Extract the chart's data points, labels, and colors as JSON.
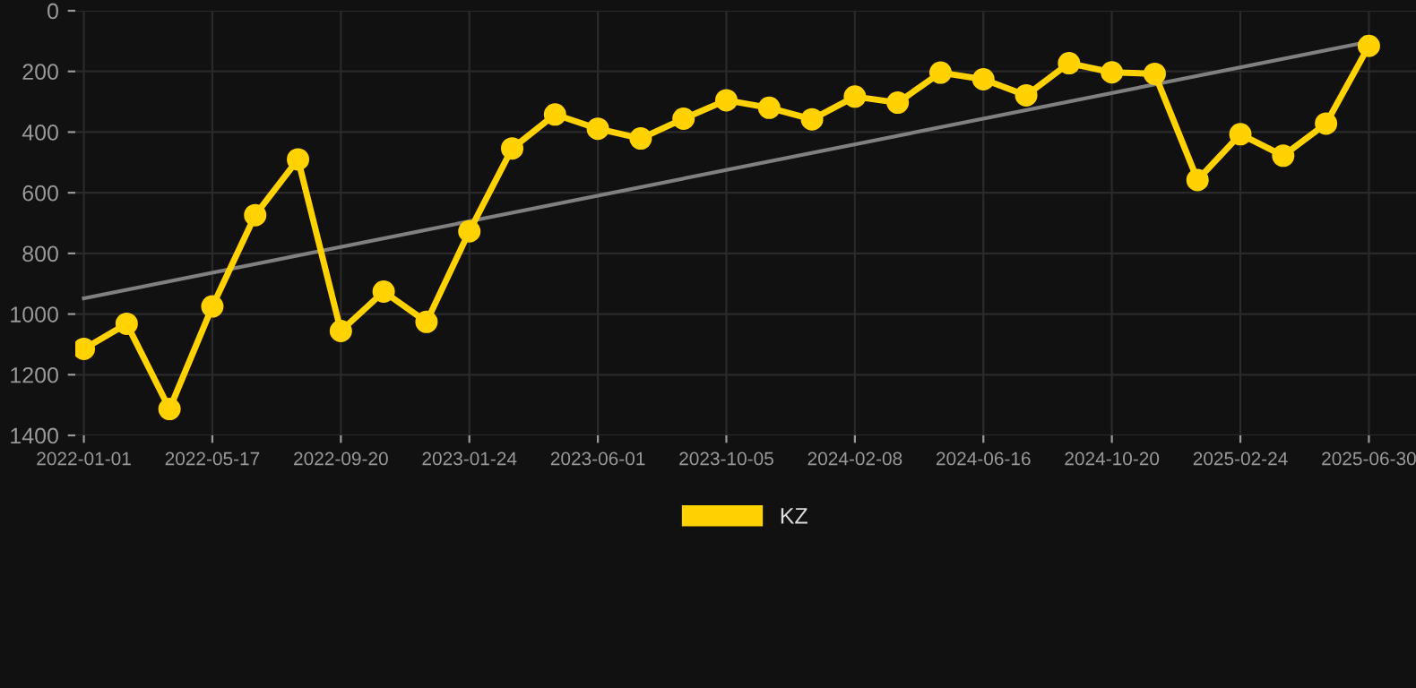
{
  "chart_data": {
    "type": "line",
    "categories": [
      "2022-01-01",
      null,
      null,
      "2022-05-17",
      null,
      null,
      "2022-09-20",
      null,
      null,
      "2023-01-24",
      null,
      null,
      "2023-06-01",
      null,
      null,
      "2023-10-05",
      null,
      null,
      "2024-02-08",
      null,
      null,
      "2024-06-16",
      null,
      null,
      "2024-10-20",
      null,
      null,
      "2025-02-24",
      null,
      null,
      "2025-06-30"
    ],
    "series": [
      {
        "name": "KZ",
        "color": "#ffd200",
        "marker": "circle",
        "values": [
          1115,
          1032,
          1313,
          975,
          674,
          490,
          1056,
          926,
          1026,
          727,
          454,
          342,
          389,
          421,
          356,
          295,
          320,
          358,
          283,
          303,
          204,
          226,
          279,
          173,
          203,
          208,
          558,
          407,
          478,
          372,
          116
        ]
      },
      {
        "type": "line",
        "color": "#808080",
        "marker": "none",
        "values": [
          948,
          null,
          null,
          null,
          null,
          null,
          null,
          null,
          null,
          null,
          null,
          null,
          null,
          null,
          null,
          null,
          null,
          null,
          null,
          null,
          null,
          null,
          null,
          null,
          null,
          null,
          null,
          null,
          null,
          null,
          102
        ]
      }
    ],
    "ylim": [
      1400,
      0
    ],
    "yticks": [
      0,
      200,
      400,
      600,
      800,
      1000,
      1200,
      1400
    ],
    "grid": true,
    "legend": "bottom",
    "line_style": "solid"
  }
}
